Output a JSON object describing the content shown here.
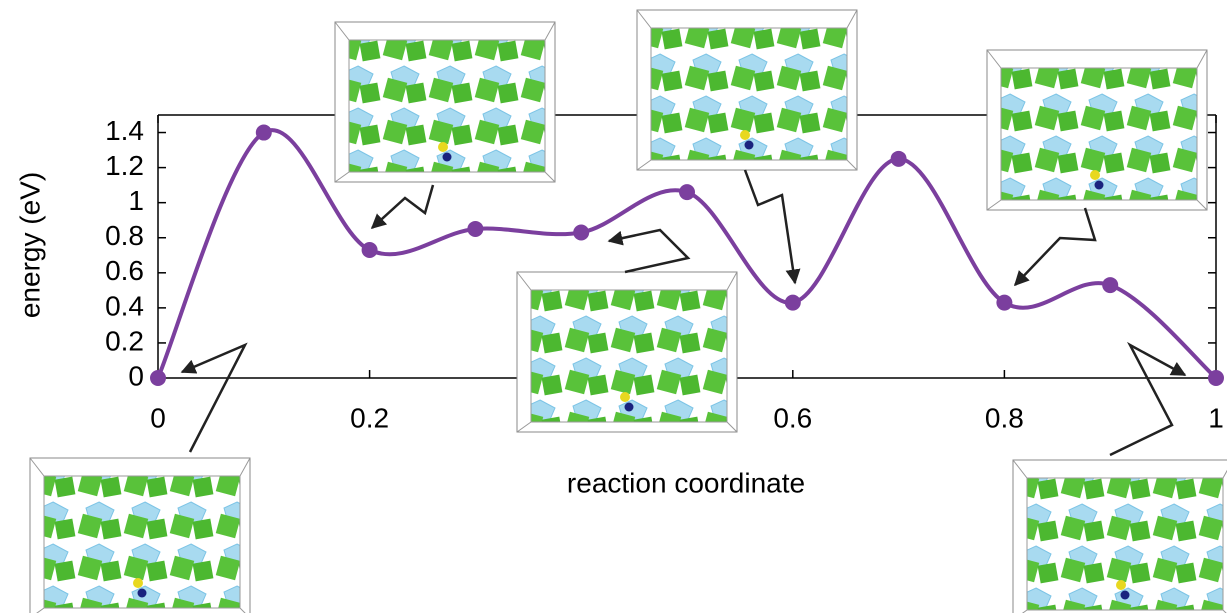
{
  "chart_data": {
    "type": "line",
    "xlabel": "reaction coordinate",
    "ylabel": "energy (eV)",
    "x": [
      0,
      0.1,
      0.2,
      0.3,
      0.4,
      0.5,
      0.6,
      0.7,
      0.8,
      0.9,
      1
    ],
    "values": [
      0,
      1.4,
      0.73,
      0.85,
      0.83,
      1.06,
      0.43,
      1.25,
      0.43,
      0.53,
      0
    ],
    "color": "#7b3f9e",
    "xlim": [
      0,
      1
    ],
    "ylim": [
      0,
      1.5
    ],
    "xticks": [
      0,
      0.2,
      0.6,
      0.8,
      1
    ],
    "yticks": [
      0,
      0.2,
      0.4,
      0.6,
      0.8,
      1,
      1.2,
      1.4
    ]
  }
}
